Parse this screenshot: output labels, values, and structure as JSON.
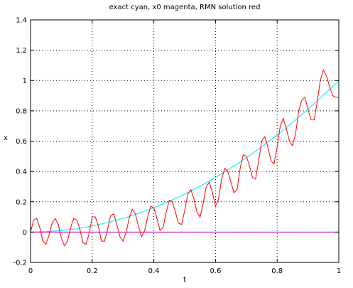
{
  "chart_data": {
    "type": "line",
    "title": "exact cyan, x0 magenta, RMN solution red",
    "xlabel": "t",
    "ylabel": "x",
    "xlim": [
      0,
      1
    ],
    "ylim": [
      -0.2,
      1.4
    ],
    "xticks": [
      "0",
      "0.2",
      "0.4",
      "0.6",
      "0.8",
      "1"
    ],
    "yticks": [
      "-0.2",
      "0",
      "0.2",
      "0.4",
      "0.6",
      "0.8",
      "1",
      "1.2",
      "1.4"
    ],
    "grid": true,
    "legend": "none",
    "series": [
      {
        "color": "#00e5ee",
        "x": [
          0,
          0.05,
          0.1,
          0.15,
          0.2,
          0.25,
          0.3,
          0.35,
          0.4,
          0.45,
          0.5,
          0.55,
          0.6,
          0.65,
          0.7,
          0.75,
          0.8,
          0.85,
          0.9,
          0.95,
          1.0
        ],
        "y": [
          0,
          0.003,
          0.01,
          0.022,
          0.04,
          0.063,
          0.09,
          0.123,
          0.16,
          0.203,
          0.25,
          0.303,
          0.36,
          0.423,
          0.49,
          0.563,
          0.64,
          0.723,
          0.81,
          0.903,
          1.0
        ]
      },
      {
        "color": "#cc00cc",
        "x": [
          0,
          1
        ],
        "y": [
          0,
          0
        ]
      },
      {
        "color": "#ff0000",
        "x": [
          0,
          0.01,
          0.02,
          0.03,
          0.04,
          0.05,
          0.06,
          0.07,
          0.08,
          0.09,
          0.1,
          0.11,
          0.12,
          0.13,
          0.14,
          0.15,
          0.16,
          0.17,
          0.18,
          0.19,
          0.2,
          0.21,
          0.22,
          0.23,
          0.24,
          0.25,
          0.26,
          0.27,
          0.28,
          0.29,
          0.3,
          0.31,
          0.32,
          0.33,
          0.34,
          0.35,
          0.36,
          0.37,
          0.38,
          0.39,
          0.4,
          0.41,
          0.42,
          0.43,
          0.44,
          0.45,
          0.46,
          0.47,
          0.48,
          0.49,
          0.5,
          0.51,
          0.52,
          0.53,
          0.54,
          0.55,
          0.56,
          0.57,
          0.58,
          0.59,
          0.6,
          0.61,
          0.62,
          0.63,
          0.64,
          0.65,
          0.66,
          0.67,
          0.68,
          0.69,
          0.7,
          0.71,
          0.72,
          0.73,
          0.74,
          0.75,
          0.76,
          0.77,
          0.78,
          0.79,
          0.8,
          0.81,
          0.82,
          0.83,
          0.84,
          0.85,
          0.86,
          0.87,
          0.88,
          0.89,
          0.9,
          0.91,
          0.92,
          0.93,
          0.94,
          0.95,
          0.96,
          0.97,
          0.98,
          0.99,
          1.0
        ],
        "y": [
          0.0,
          0.08,
          0.09,
          0.03,
          -0.06,
          -0.08,
          -0.02,
          0.06,
          0.09,
          0.05,
          -0.04,
          -0.09,
          -0.06,
          0.03,
          0.09,
          0.08,
          0.02,
          -0.07,
          -0.08,
          -0.01,
          0.1,
          0.1,
          0.04,
          -0.06,
          -0.06,
          0.02,
          0.11,
          0.12,
          0.05,
          -0.03,
          -0.06,
          0.0,
          0.09,
          0.15,
          0.12,
          0.04,
          -0.03,
          0.01,
          0.1,
          0.17,
          0.16,
          0.09,
          0.01,
          0.03,
          0.13,
          0.21,
          0.2,
          0.13,
          0.06,
          0.05,
          0.14,
          0.25,
          0.28,
          0.22,
          0.13,
          0.1,
          0.19,
          0.3,
          0.33,
          0.26,
          0.17,
          0.22,
          0.35,
          0.42,
          0.4,
          0.33,
          0.26,
          0.28,
          0.42,
          0.51,
          0.5,
          0.44,
          0.36,
          0.35,
          0.47,
          0.6,
          0.63,
          0.56,
          0.47,
          0.45,
          0.56,
          0.7,
          0.75,
          0.68,
          0.6,
          0.57,
          0.65,
          0.8,
          0.87,
          0.89,
          0.81,
          0.74,
          0.74,
          0.86,
          1.0,
          1.07,
          1.03,
          0.96,
          0.9,
          0.89,
          0.89
        ]
      }
    ]
  }
}
